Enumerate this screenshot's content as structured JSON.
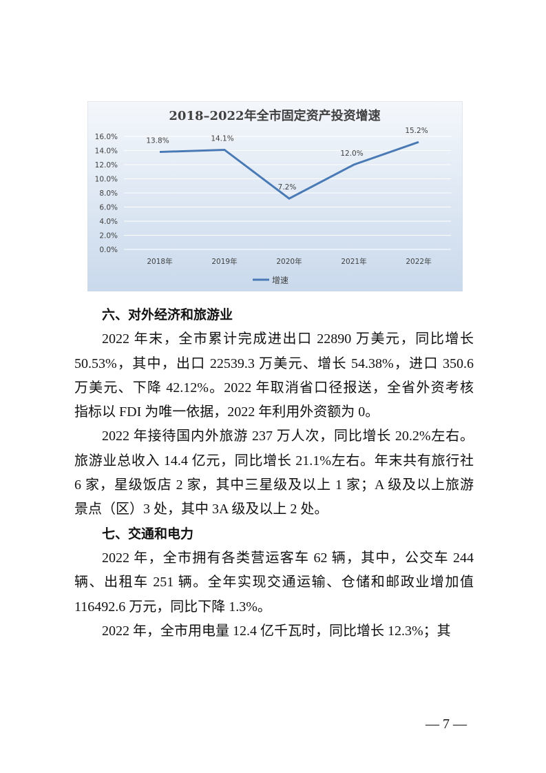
{
  "chart_data": {
    "type": "line",
    "title": "2018–2022年全市固定资产投资增速",
    "categories": [
      "2018年",
      "2019年",
      "2020年",
      "2021年",
      "2022年"
    ],
    "series": [
      {
        "name": "增速",
        "values": [
          13.8,
          14.1,
          7.2,
          12.0,
          15.2
        ],
        "labels": [
          "13.8%",
          "14.1%",
          "7.2%",
          "12.0%",
          "15.2%"
        ],
        "color": "#4a7ab5"
      }
    ],
    "ylim": [
      0,
      16
    ],
    "yticks": [
      "0.0%",
      "2.0%",
      "4.0%",
      "6.0%",
      "8.0%",
      "10.0%",
      "12.0%",
      "14.0%",
      "16.0%"
    ],
    "grid": true,
    "legend": "bottom"
  },
  "sections": [
    {
      "heading": "六、对外经济和旅游业",
      "paragraphs": [
        [
          "2022 年末，全市累计完成进出口 22890 万美元，同比增长",
          "50.53%，其中，出口 22539.3 万美元、增长 54.38%，进口 350.6",
          "万美元、下降 42.12%。2022 年取消省口径报送，全省外资考核",
          "指标以 FDI 为唯一依据，2022 年利用外资额为 0。"
        ],
        [
          "2022 年接待国内外旅游 237 万人次，同比增长 20.2%左右。",
          "旅游业总收入 14.4 亿元，同比增长 21.1%左右。年末共有旅行社",
          "6 家，星级饭店 2 家，其中三星级及以上 1 家；A 级及以上旅游",
          "景点（区）3 处，其中 3A 级及以上 2 处。"
        ]
      ]
    },
    {
      "heading": "七、交通和电力",
      "paragraphs": [
        [
          "2022 年，全市拥有各类营运客车 62 辆，其中，公交车 244",
          "辆、出租车 251 辆。全年实现交通运输、仓储和邮政业增加值",
          "116492.6 万元，同比下降 1.3%。"
        ],
        [
          "2022 年，全市用电量 12.4 亿千瓦时，同比增长 12.3%；其"
        ]
      ]
    }
  ],
  "page_number": "— 7 —"
}
